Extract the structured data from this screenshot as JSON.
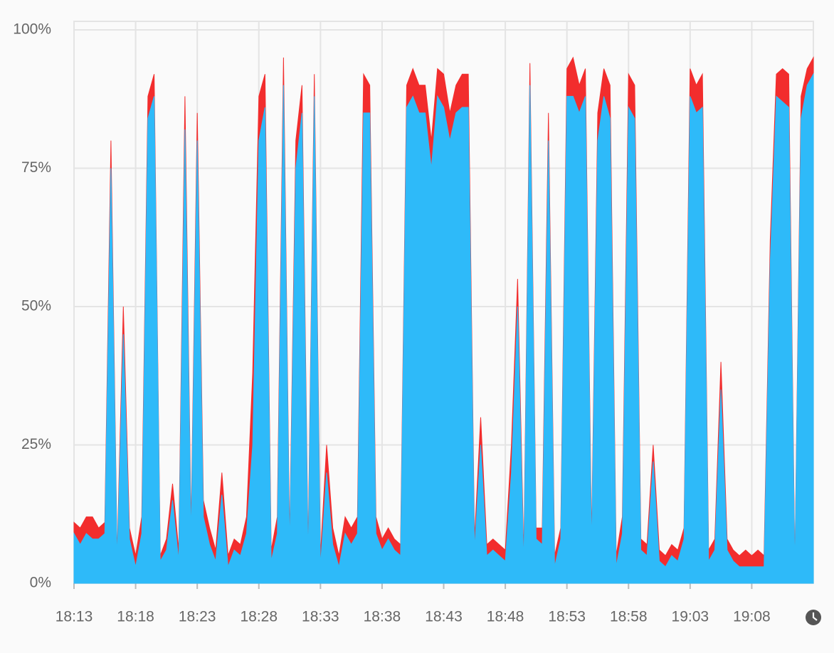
{
  "chart_data": {
    "type": "area",
    "categories": [
      "18:13",
      null,
      null,
      null,
      null,
      null,
      null,
      null,
      null,
      null,
      "18:18",
      null,
      null,
      null,
      null,
      null,
      null,
      null,
      null,
      null,
      "18:23",
      null,
      null,
      null,
      null,
      null,
      null,
      null,
      null,
      null,
      "18:28",
      null,
      null,
      null,
      null,
      null,
      null,
      null,
      null,
      null,
      "18:33",
      null,
      null,
      null,
      null,
      null,
      null,
      null,
      null,
      null,
      "18:38",
      null,
      null,
      null,
      null,
      null,
      null,
      null,
      null,
      null,
      "18:43",
      null,
      null,
      null,
      null,
      null,
      null,
      null,
      null,
      null,
      "18:48",
      null,
      null,
      null,
      null,
      null,
      null,
      null,
      null,
      null,
      "18:53",
      null,
      null,
      null,
      null,
      null,
      null,
      null,
      null,
      null,
      "18:58",
      null,
      null,
      null,
      null,
      null,
      null,
      null,
      null,
      null,
      "19:03",
      null,
      null,
      null,
      null,
      null,
      null,
      null,
      null,
      null,
      "19:08",
      null,
      null,
      null,
      null,
      null,
      null,
      null,
      null,
      null,
      null
    ],
    "series": [
      {
        "color": "#2ebaf9",
        "values": [
          9,
          7,
          9,
          8,
          8,
          9,
          75,
          4,
          45,
          8,
          3,
          9,
          84,
          88,
          4,
          6,
          15,
          4,
          82,
          8,
          80,
          12,
          7,
          4,
          16,
          3,
          6,
          5,
          9,
          25,
          80,
          86,
          4,
          9,
          90,
          6,
          75,
          85,
          4,
          88,
          3,
          20,
          7,
          3,
          9,
          7,
          9,
          85,
          85,
          9,
          6,
          8,
          6,
          5,
          86,
          88,
          85,
          85,
          75,
          88,
          86,
          80,
          85,
          86,
          86,
          6,
          25,
          5,
          6,
          5,
          4,
          20,
          50,
          3,
          90,
          8,
          7,
          80,
          3,
          8,
          88,
          88,
          85,
          88,
          6,
          80,
          88,
          84,
          3,
          9,
          86,
          84,
          6,
          5,
          22,
          4,
          3,
          5,
          4,
          8,
          88,
          85,
          86,
          4,
          6,
          35,
          6,
          4,
          3,
          3,
          3,
          3,
          3,
          58,
          88,
          87,
          86,
          2,
          84,
          90,
          92
        ]
      },
      {
        "color": "#f22d2d",
        "values": [
          2,
          3,
          3,
          4,
          2,
          2,
          5,
          1,
          5,
          2,
          2,
          3,
          4,
          4,
          1,
          2,
          3,
          2,
          6,
          2,
          5,
          3,
          3,
          2,
          4,
          2,
          2,
          2,
          3,
          13,
          8,
          6,
          2,
          3,
          5,
          2,
          5,
          5,
          2,
          4,
          2,
          5,
          3,
          2,
          3,
          3,
          3,
          7,
          5,
          3,
          2,
          2,
          2,
          2,
          4,
          5,
          5,
          5,
          5,
          5,
          6,
          5,
          5,
          6,
          6,
          2,
          5,
          2,
          2,
          2,
          2,
          5,
          5,
          2,
          4,
          2,
          3,
          5,
          2,
          2,
          5,
          7,
          5,
          5,
          2,
          5,
          5,
          6,
          2,
          3,
          6,
          6,
          2,
          2,
          3,
          2,
          2,
          2,
          2,
          2,
          5,
          5,
          6,
          2,
          2,
          5,
          2,
          2,
          2,
          3,
          2,
          3,
          2,
          4,
          4,
          6,
          6,
          1,
          4,
          3,
          3
        ]
      }
    ],
    "ylim": [
      0,
      100
    ],
    "yticks": [
      {
        "value": 0,
        "label": "0%"
      },
      {
        "value": 25,
        "label": "25%"
      },
      {
        "value": 50,
        "label": "50%"
      },
      {
        "value": 75,
        "label": "75%"
      },
      {
        "value": 100,
        "label": "100%"
      }
    ],
    "stacked": true,
    "grid": true
  }
}
